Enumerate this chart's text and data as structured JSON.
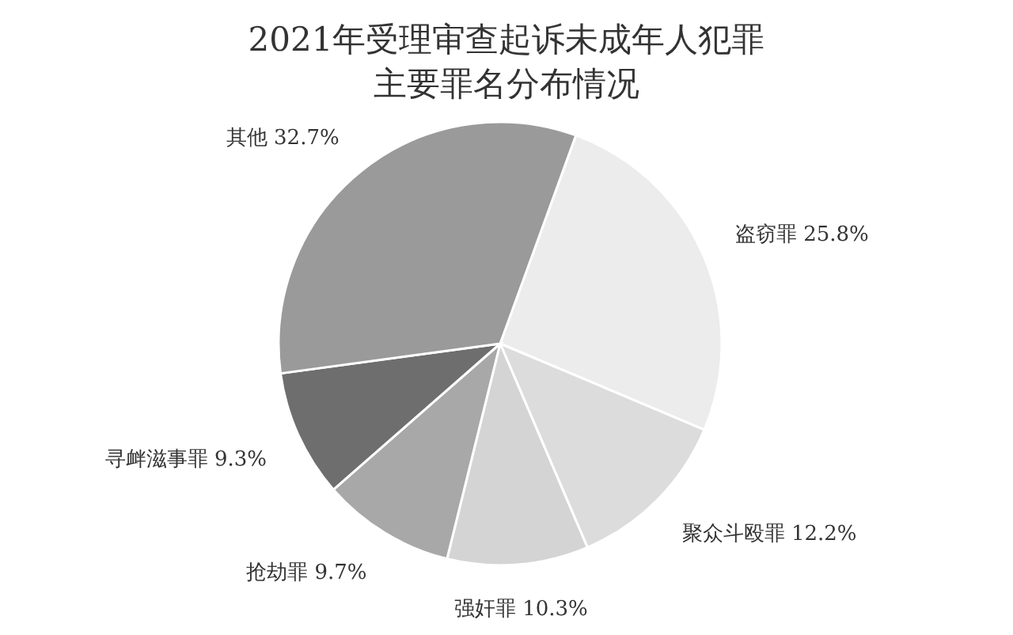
{
  "chart_data": {
    "type": "pie",
    "title": "2021年受理审查起诉未成年人犯罪",
    "subtitle": "主要罪名分布情况",
    "categories": [
      "盗窃罪",
      "聚众斗殴罪",
      "强奸罪",
      "抢劫罪",
      "寻衅滋事罪",
      "其他"
    ],
    "values": [
      25.8,
      12.2,
      10.3,
      9.7,
      9.3,
      32.7
    ],
    "value_labels": [
      "25.8%",
      "12.2%",
      "10.3%",
      "9.7%",
      "9.3%",
      "32.7%"
    ],
    "colors": [
      "#ececec",
      "#dcdcdc",
      "#d4d4d4",
      "#a8a8a8",
      "#6e6e6e",
      "#9a9a9a"
    ]
  }
}
